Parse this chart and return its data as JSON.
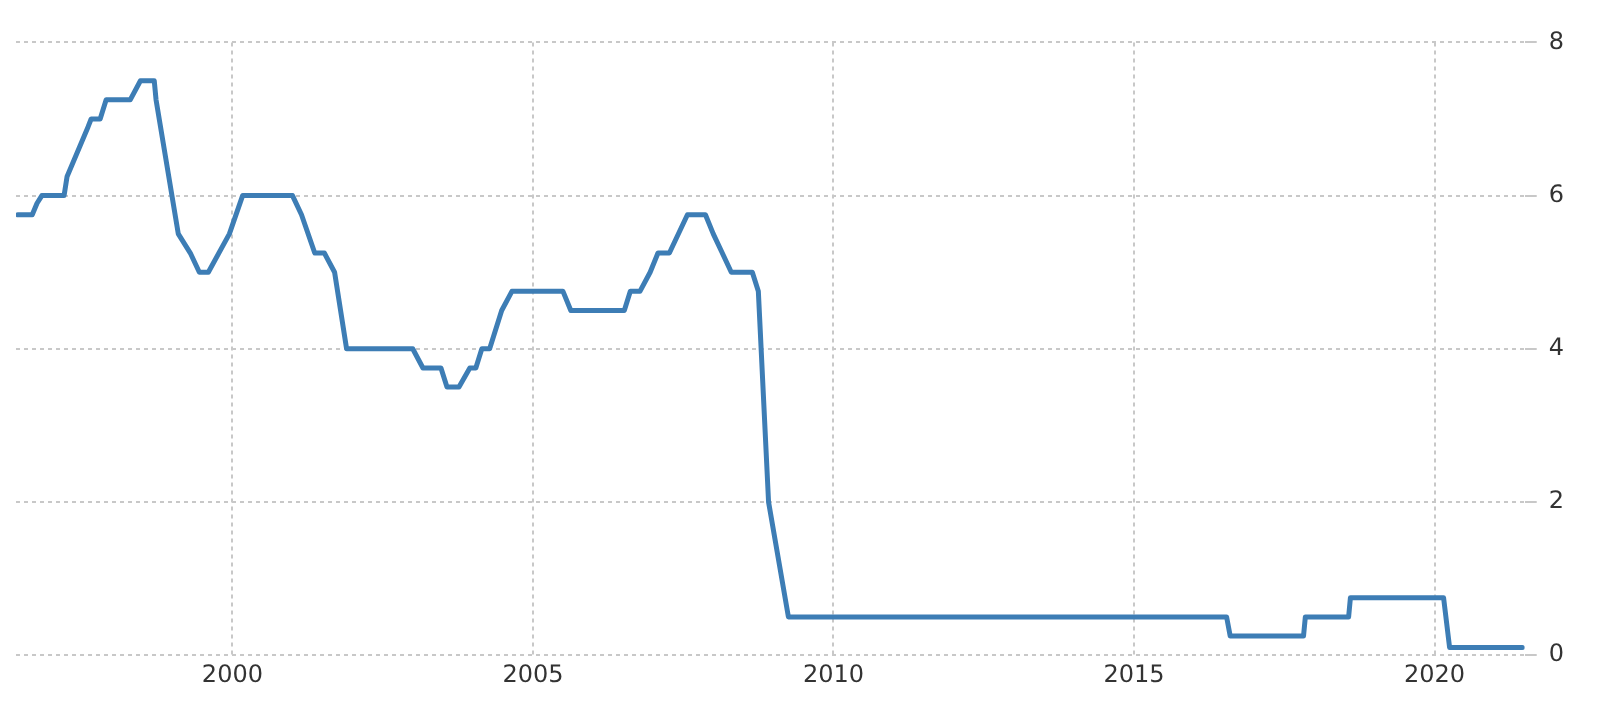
{
  "chart_data": {
    "type": "line",
    "x": [
      1996.43,
      1996.67,
      1996.75,
      1996.83,
      1997.2,
      1997.25,
      1997.6,
      1997.65,
      1997.8,
      1997.9,
      1998.3,
      1998.47,
      1998.7,
      1998.73,
      1999.1,
      1999.3,
      1999.45,
      1999.6,
      1999.95,
      2000.17,
      2001.0,
      2001.15,
      2001.37,
      2001.53,
      2001.7,
      2001.9,
      2003.0,
      2003.17,
      2003.47,
      2003.57,
      2003.77,
      2003.95,
      2004.05,
      2004.15,
      2004.28,
      2004.48,
      2004.65,
      2005.5,
      2005.63,
      2006.52,
      2006.62,
      2006.78,
      2006.95,
      2007.08,
      2007.27,
      2007.57,
      2007.87,
      2008.0,
      2008.15,
      2008.3,
      2008.65,
      2008.75,
      2008.92,
      2009.25,
      2016.54,
      2016.6,
      2017.82,
      2017.85,
      2018.57,
      2018.6,
      2020.15,
      2020.25,
      2021.46
    ],
    "series": [
      {
        "color": "#3d7db5",
        "values": [
          5.75,
          5.75,
          5.9,
          6.0,
          6.0,
          6.25,
          6.9,
          7.0,
          7.0,
          7.25,
          7.25,
          7.5,
          7.5,
          7.25,
          5.5,
          5.25,
          5.0,
          5.0,
          5.5,
          6.0,
          6.0,
          5.75,
          5.25,
          5.25,
          5.0,
          4.0,
          4.0,
          3.75,
          3.75,
          3.5,
          3.5,
          3.75,
          3.75,
          4.0,
          4.0,
          4.5,
          4.75,
          4.75,
          4.5,
          4.5,
          4.75,
          4.75,
          5.0,
          5.25,
          5.25,
          5.75,
          5.75,
          5.5,
          5.25,
          5.0,
          5.0,
          4.75,
          2.0,
          0.5,
          0.5,
          0.25,
          0.25,
          0.5,
          0.5,
          0.75,
          0.75,
          0.1,
          0.1
        ]
      }
    ],
    "xlim": [
      1996.4,
      2021.5
    ],
    "xticks": [
      2000,
      2005,
      2010,
      2015,
      2020
    ],
    "ylim": [
      0,
      8
    ],
    "yticks": [
      0,
      2,
      4,
      6,
      8
    ],
    "grid": true,
    "legend": false,
    "marker": "none",
    "line_style": "solid"
  }
}
